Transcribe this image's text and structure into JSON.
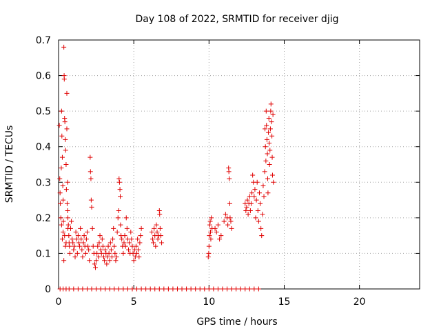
{
  "chart_data": {
    "type": "scatter",
    "title": "Day 108 of 2022, SRMTID for receiver djig",
    "xlabel": "GPS time / hours",
    "ylabel": "SRMTID / TECUs",
    "xlim": [
      0,
      24
    ],
    "ylim": [
      0,
      0.7
    ],
    "x_ticks": [
      0,
      5,
      10,
      15,
      20
    ],
    "x_tick_labels": [
      "0",
      "5",
      "10",
      "15",
      "20"
    ],
    "y_ticks": [
      0,
      0.1,
      0.2,
      0.3,
      0.4,
      0.5,
      0.6,
      0.7
    ],
    "y_tick_labels": [
      "0",
      "0.1",
      "0.2",
      "0.3",
      "0.4",
      "0.5",
      "0.6",
      "0.7"
    ],
    "grid": true,
    "marker": "plus",
    "marker_color": "#e00000",
    "series": [
      {
        "name": "SRMTID",
        "points": [
          [
            0.05,
            0.46
          ],
          [
            0.08,
            0.31
          ],
          [
            0.1,
            0.27
          ],
          [
            0.12,
            0.24
          ],
          [
            0.15,
            0.2
          ],
          [
            0.18,
            0.34
          ],
          [
            0.2,
            0.5
          ],
          [
            0.22,
            0.43
          ],
          [
            0.25,
            0.37
          ],
          [
            0.28,
            0.29
          ],
          [
            0.3,
            0.25
          ],
          [
            0.32,
            0.19
          ],
          [
            0.35,
            0.68
          ],
          [
            0.37,
            0.6
          ],
          [
            0.38,
            0.59
          ],
          [
            0.4,
            0.48
          ],
          [
            0.42,
            0.47
          ],
          [
            0.45,
            0.42
          ],
          [
            0.47,
            0.39
          ],
          [
            0.5,
            0.35
          ],
          [
            0.52,
            0.28
          ],
          [
            0.55,
            0.55
          ],
          [
            0.57,
            0.24
          ],
          [
            0.6,
            0.22
          ],
          [
            0.62,
            0.2
          ],
          [
            0.65,
            0.18
          ],
          [
            0.68,
            0.15
          ],
          [
            0.7,
            0.13
          ],
          [
            0.72,
            0.12
          ],
          [
            0.75,
            0.1
          ],
          [
            0.35,
            0.08
          ],
          [
            0.4,
            0.15
          ],
          [
            0.45,
            0.12
          ],
          [
            0.5,
            0.13
          ],
          [
            0.3,
            0.16
          ],
          [
            0.6,
            0.3
          ],
          [
            0.55,
            0.45
          ],
          [
            0.62,
            0.17
          ],
          [
            0.25,
            0.14
          ],
          [
            0.2,
            0.18
          ],
          [
            0.8,
            0.17
          ],
          [
            0.85,
            0.19
          ],
          [
            0.9,
            0.14
          ],
          [
            0.95,
            0.13
          ],
          [
            1.0,
            0.11
          ],
          [
            1.05,
            0.12
          ],
          [
            1.1,
            0.09
          ],
          [
            1.15,
            0.16
          ],
          [
            1.2,
            0.14
          ],
          [
            1.25,
            0.1
          ],
          [
            1.3,
            0.15
          ],
          [
            1.35,
            0.13
          ],
          [
            1.4,
            0.12
          ],
          [
            1.45,
            0.17
          ],
          [
            1.5,
            0.14
          ],
          [
            1.55,
            0.11
          ],
          [
            1.6,
            0.09
          ],
          [
            1.65,
            0.13
          ],
          [
            1.7,
            0.15
          ],
          [
            1.75,
            0.12
          ],
          [
            1.8,
            0.1
          ],
          [
            1.85,
            0.14
          ],
          [
            1.9,
            0.16
          ],
          [
            1.95,
            0.12
          ],
          [
            2.0,
            0.11
          ],
          [
            2.05,
            0.08
          ],
          [
            2.1,
            0.37
          ],
          [
            2.12,
            0.33
          ],
          [
            2.15,
            0.31
          ],
          [
            2.17,
            0.25
          ],
          [
            2.2,
            0.23
          ],
          [
            2.25,
            0.17
          ],
          [
            2.3,
            0.12
          ],
          [
            2.35,
            0.1
          ],
          [
            2.4,
            0.07
          ],
          [
            2.45,
            0.06
          ],
          [
            2.5,
            0.08
          ],
          [
            2.55,
            0.1
          ],
          [
            2.6,
            0.12
          ],
          [
            2.65,
            0.09
          ],
          [
            2.7,
            0.13
          ],
          [
            2.75,
            0.15
          ],
          [
            2.8,
            0.11
          ],
          [
            2.85,
            0.1
          ],
          [
            2.9,
            0.14
          ],
          [
            2.95,
            0.12
          ],
          [
            3.0,
            0.09
          ],
          [
            3.05,
            0.08
          ],
          [
            3.1,
            0.11
          ],
          [
            3.15,
            0.1
          ],
          [
            3.2,
            0.07
          ],
          [
            3.25,
            0.09
          ],
          [
            3.3,
            0.12
          ],
          [
            3.35,
            0.1
          ],
          [
            3.4,
            0.08
          ],
          [
            3.45,
            0.13
          ],
          [
            3.5,
            0.11
          ],
          [
            3.55,
            0.09
          ],
          [
            3.6,
            0.14
          ],
          [
            3.65,
            0.17
          ],
          [
            3.7,
            0.12
          ],
          [
            3.75,
            0.1
          ],
          [
            3.8,
            0.08
          ],
          [
            3.85,
            0.09
          ],
          [
            3.9,
            0.16
          ],
          [
            3.95,
            0.2
          ],
          [
            4.0,
            0.22
          ],
          [
            4.02,
            0.31
          ],
          [
            4.05,
            0.3
          ],
          [
            4.08,
            0.28
          ],
          [
            4.1,
            0.26
          ],
          [
            4.12,
            0.18
          ],
          [
            4.15,
            0.15
          ],
          [
            4.2,
            0.14
          ],
          [
            4.25,
            0.12
          ],
          [
            4.3,
            0.1
          ],
          [
            4.35,
            0.13
          ],
          [
            4.4,
            0.15
          ],
          [
            4.45,
            0.12
          ],
          [
            4.5,
            0.2
          ],
          [
            4.55,
            0.17
          ],
          [
            4.6,
            0.14
          ],
          [
            4.65,
            0.11
          ],
          [
            4.7,
            0.13
          ],
          [
            4.75,
            0.1
          ],
          [
            4.8,
            0.16
          ],
          [
            4.85,
            0.14
          ],
          [
            4.9,
            0.12
          ],
          [
            4.95,
            0.1
          ],
          [
            5.0,
            0.08
          ],
          [
            5.05,
            0.11
          ],
          [
            5.1,
            0.09
          ],
          [
            5.15,
            0.12
          ],
          [
            5.2,
            0.1
          ],
          [
            5.25,
            0.14
          ],
          [
            5.3,
            0.11
          ],
          [
            5.35,
            0.09
          ],
          [
            5.4,
            0.13
          ],
          [
            5.45,
            0.15
          ],
          [
            5.5,
            0.17
          ],
          [
            6.2,
            0.16
          ],
          [
            6.25,
            0.14
          ],
          [
            6.3,
            0.13
          ],
          [
            6.35,
            0.17
          ],
          [
            6.4,
            0.15
          ],
          [
            6.45,
            0.12
          ],
          [
            6.5,
            0.18
          ],
          [
            6.55,
            0.16
          ],
          [
            6.6,
            0.14
          ],
          [
            6.65,
            0.15
          ],
          [
            6.7,
            0.22
          ],
          [
            6.72,
            0.21
          ],
          [
            6.75,
            0.17
          ],
          [
            6.8,
            0.15
          ],
          [
            6.85,
            0.13
          ],
          [
            9.95,
            0.09
          ],
          [
            9.98,
            0.1
          ],
          [
            10.0,
            0.12
          ],
          [
            10.02,
            0.15
          ],
          [
            10.05,
            0.18
          ],
          [
            10.08,
            0.19
          ],
          [
            10.1,
            0.16
          ],
          [
            10.12,
            0.14
          ],
          [
            10.15,
            0.2
          ],
          [
            10.2,
            0.17
          ],
          [
            10.4,
            0.17
          ],
          [
            10.5,
            0.16
          ],
          [
            10.6,
            0.18
          ],
          [
            10.7,
            0.14
          ],
          [
            10.8,
            0.15
          ],
          [
            11.0,
            0.19
          ],
          [
            11.1,
            0.21
          ],
          [
            11.2,
            0.2
          ],
          [
            11.25,
            0.18
          ],
          [
            11.3,
            0.34
          ],
          [
            11.32,
            0.33
          ],
          [
            11.35,
            0.31
          ],
          [
            11.38,
            0.24
          ],
          [
            11.4,
            0.2
          ],
          [
            11.45,
            0.19
          ],
          [
            11.5,
            0.17
          ],
          [
            12.4,
            0.24
          ],
          [
            12.45,
            0.22
          ],
          [
            12.5,
            0.23
          ],
          [
            12.55,
            0.25
          ],
          [
            12.6,
            0.21
          ],
          [
            12.65,
            0.24
          ],
          [
            12.7,
            0.26
          ],
          [
            12.75,
            0.22
          ],
          [
            12.8,
            0.24
          ],
          [
            12.85,
            0.27
          ],
          [
            12.9,
            0.32
          ],
          [
            12.95,
            0.3
          ],
          [
            13.0,
            0.26
          ],
          [
            13.05,
            0.28
          ],
          [
            13.1,
            0.2
          ],
          [
            13.15,
            0.25
          ],
          [
            13.2,
            0.3
          ],
          [
            13.25,
            0.22
          ],
          [
            13.3,
            0.19
          ],
          [
            13.35,
            0.27
          ],
          [
            13.4,
            0.24
          ],
          [
            13.45,
            0.17
          ],
          [
            13.5,
            0.15
          ],
          [
            13.55,
            0.21
          ],
          [
            13.6,
            0.29
          ],
          [
            13.65,
            0.26
          ],
          [
            13.7,
            0.33
          ],
          [
            13.72,
            0.45
          ],
          [
            13.75,
            0.4
          ],
          [
            13.78,
            0.36
          ],
          [
            13.8,
            0.5
          ],
          [
            13.82,
            0.46
          ],
          [
            13.85,
            0.42
          ],
          [
            13.88,
            0.38
          ],
          [
            13.9,
            0.31
          ],
          [
            13.92,
            0.27
          ],
          [
            13.95,
            0.44
          ],
          [
            13.98,
            0.48
          ],
          [
            14.0,
            0.41
          ],
          [
            14.02,
            0.35
          ],
          [
            14.05,
            0.39
          ],
          [
            14.08,
            0.45
          ],
          [
            14.1,
            0.5
          ],
          [
            14.12,
            0.52
          ],
          [
            14.15,
            0.47
          ],
          [
            14.18,
            0.43
          ],
          [
            14.2,
            0.37
          ],
          [
            14.22,
            0.32
          ],
          [
            14.25,
            0.49
          ],
          [
            14.28,
            0.3
          ],
          [
            0.1,
            0
          ],
          [
            0.3,
            0
          ],
          [
            0.5,
            0
          ],
          [
            0.7,
            0
          ],
          [
            1.0,
            0
          ],
          [
            1.3,
            0
          ],
          [
            1.6,
            0
          ],
          [
            1.9,
            0
          ],
          [
            2.2,
            0
          ],
          [
            2.5,
            0
          ],
          [
            2.8,
            0
          ],
          [
            3.1,
            0
          ],
          [
            3.4,
            0
          ],
          [
            3.7,
            0
          ],
          [
            4.0,
            0
          ],
          [
            4.3,
            0
          ],
          [
            4.6,
            0
          ],
          [
            4.9,
            0
          ],
          [
            5.2,
            0
          ],
          [
            5.5,
            0
          ],
          [
            5.8,
            0
          ],
          [
            6.1,
            0
          ],
          [
            6.4,
            0
          ],
          [
            6.7,
            0
          ],
          [
            7.0,
            0
          ],
          [
            7.3,
            0
          ],
          [
            7.6,
            0
          ],
          [
            7.9,
            0
          ],
          [
            8.2,
            0
          ],
          [
            8.5,
            0
          ],
          [
            8.8,
            0
          ],
          [
            9.1,
            0
          ],
          [
            9.4,
            0
          ],
          [
            9.7,
            0
          ],
          [
            10.0,
            0
          ],
          [
            10.3,
            0
          ],
          [
            10.6,
            0
          ],
          [
            10.9,
            0
          ],
          [
            11.2,
            0
          ],
          [
            11.5,
            0
          ],
          [
            11.8,
            0
          ],
          [
            12.1,
            0
          ],
          [
            12.4,
            0
          ],
          [
            12.7,
            0
          ],
          [
            13.0,
            0
          ],
          [
            13.3,
            0
          ]
        ]
      }
    ]
  }
}
